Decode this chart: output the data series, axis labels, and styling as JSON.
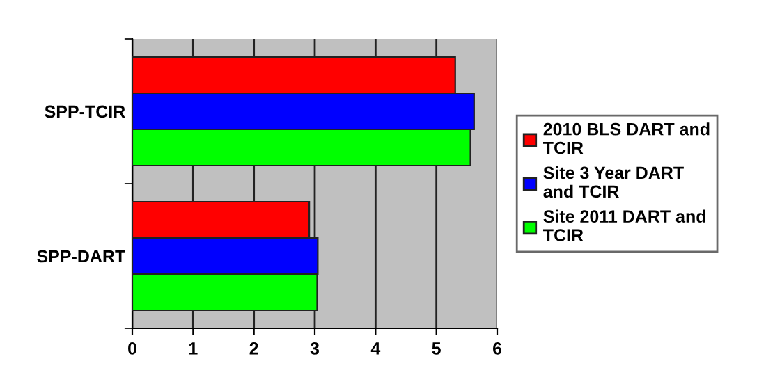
{
  "chart_data": {
    "type": "bar",
    "orientation": "horizontal",
    "categories": [
      "SPP-TCIR",
      "SPP-DART"
    ],
    "series": [
      {
        "name": "2010 BLS DART and TCIR",
        "color": "#ff0000",
        "values": [
          5.31,
          2.91
        ]
      },
      {
        "name": "Site 3 Year DART and TCIR",
        "color": "#0000ff",
        "values": [
          5.62,
          3.05
        ]
      },
      {
        "name": "Site 2011 DART and TCIR",
        "color": "#00ff00",
        "values": [
          5.56,
          3.04
        ]
      }
    ],
    "xlim": [
      0,
      6
    ],
    "xticks": [
      0,
      1,
      2,
      3,
      4,
      5,
      6
    ],
    "grid": "x",
    "legend": "right"
  }
}
